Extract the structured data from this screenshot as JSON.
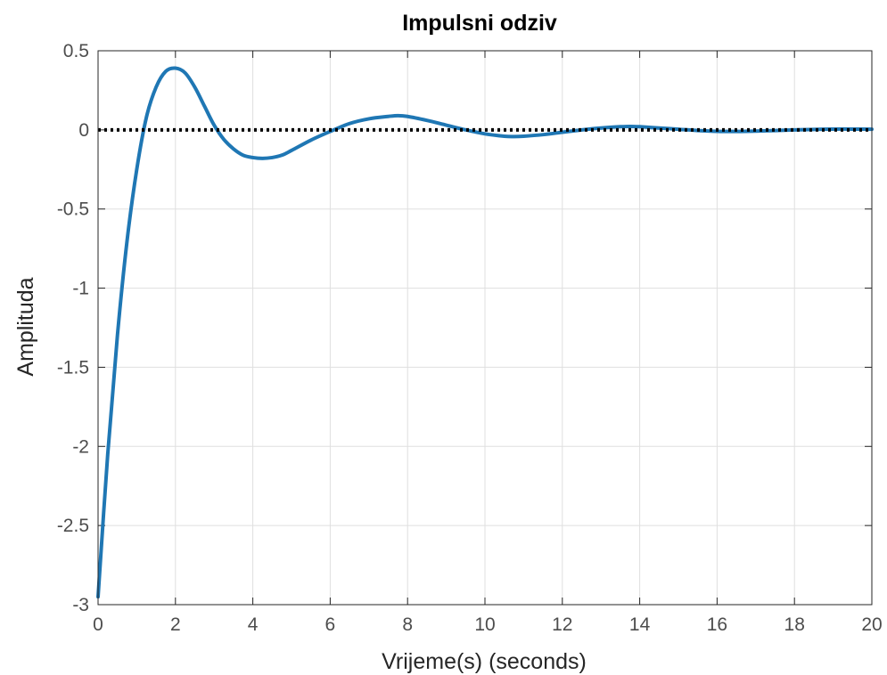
{
  "chart_data": {
    "type": "line",
    "title": "Impulsni odziv",
    "xlabel": "Vrijeme(s) (seconds)",
    "ylabel": "Amplituda",
    "xlim": [
      0,
      20
    ],
    "ylim": [
      -3,
      0.5
    ],
    "xticks": [
      "0",
      "2",
      "4",
      "6",
      "8",
      "10",
      "12",
      "14",
      "16",
      "18",
      "20"
    ],
    "yticks": [
      "0.5",
      "0",
      "-0.5",
      "-1",
      "-1.5",
      "-2",
      "-2.5",
      "-3"
    ],
    "grid": true,
    "series": [
      {
        "color": "#1f77b4",
        "style": "solid",
        "x": [
          0,
          0.25,
          0.5,
          0.75,
          1.0,
          1.25,
          1.5,
          1.75,
          2.0,
          2.25,
          2.5,
          2.75,
          3.0,
          3.25,
          3.5,
          3.75,
          4.0,
          4.25,
          4.5,
          4.75,
          5.0,
          5.5,
          6.0,
          6.5,
          7.0,
          7.5,
          7.75,
          8.0,
          8.5,
          9.0,
          9.5,
          10.0,
          10.5,
          10.75,
          11.0,
          11.5,
          12.0,
          12.5,
          13.0,
          13.5,
          13.75,
          14.0,
          14.5,
          15.0,
          15.5,
          16.0,
          16.5,
          17.0,
          17.5,
          18.0,
          18.5,
          19.0,
          19.5,
          20.0
        ],
        "y": [
          -2.95,
          -2.05,
          -1.3,
          -0.7,
          -0.25,
          0.08,
          0.27,
          0.37,
          0.39,
          0.36,
          0.27,
          0.15,
          0.03,
          -0.06,
          -0.12,
          -0.16,
          -0.175,
          -0.18,
          -0.175,
          -0.16,
          -0.13,
          -0.065,
          -0.01,
          0.04,
          0.07,
          0.085,
          0.09,
          0.085,
          0.06,
          0.03,
          0.0,
          -0.025,
          -0.04,
          -0.042,
          -0.04,
          -0.03,
          -0.015,
          0.0,
          0.012,
          0.02,
          0.022,
          0.02,
          0.012,
          0.004,
          -0.004,
          -0.009,
          -0.01,
          -0.008,
          -0.004,
          0.0,
          0.003,
          0.005,
          0.005,
          0.004
        ]
      },
      {
        "color": "#000000",
        "style": "dotted",
        "x": [
          0,
          20
        ],
        "y": [
          0,
          0
        ]
      }
    ]
  }
}
